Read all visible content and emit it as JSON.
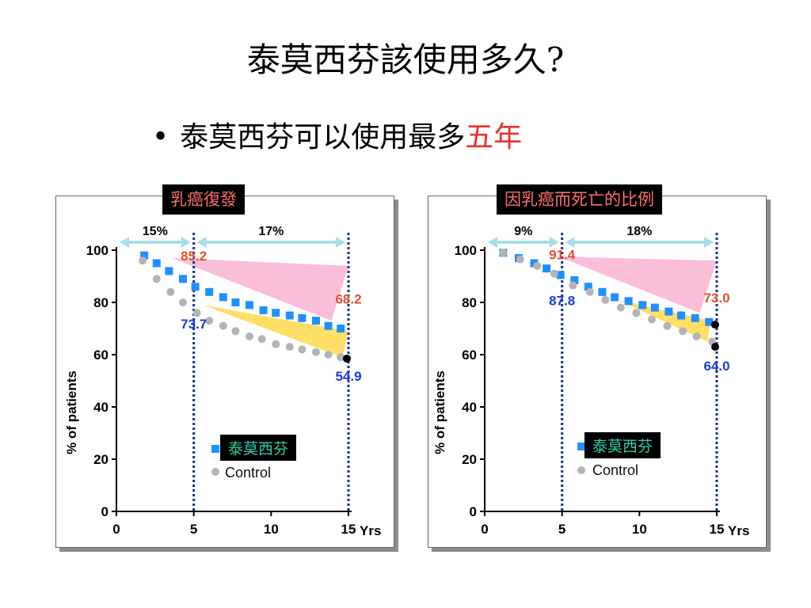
{
  "slide": {
    "title": "泰莫西芬該使用多久?",
    "bullet_prefix": "泰莫西芬可以使用最多",
    "bullet_highlight": "五年",
    "highlight_color": "#e8312f"
  },
  "colors": {
    "tamoxifen": "#1e90ff",
    "control": "#b4b4b4",
    "pink": "#f9b3d2",
    "yellow": "#ffd94a",
    "arrow": "#a9dfe6",
    "vline": "#1a2a9a",
    "red_label": "#e05030",
    "blue_label": "#1a3adf"
  },
  "chart_data": [
    {
      "type": "scatter",
      "title": "乳癌復發",
      "ylabel": "% of patients",
      "xlabel": "Yrs",
      "xlim": [
        0,
        15
      ],
      "ylim": [
        0,
        100
      ],
      "xticks": [
        0,
        5,
        10,
        15
      ],
      "yticks": [
        0,
        20,
        40,
        60,
        80,
        100
      ],
      "legend": [
        "泰莫西芬",
        "Control"
      ],
      "legend_position": "bottom-center",
      "spans": [
        {
          "from": 0,
          "to": 5,
          "label": "15%"
        },
        {
          "from": 5,
          "to": 15,
          "label": "17%"
        }
      ],
      "series": [
        {
          "name": "泰莫西芬",
          "marker": "square",
          "x": [
            1.8,
            2.6,
            3.4,
            4.3,
            5.1,
            6.0,
            6.9,
            7.7,
            8.6,
            9.5,
            10.3,
            11.2,
            12.0,
            12.9,
            13.7,
            14.5
          ],
          "y": [
            98.0,
            95.0,
            92.0,
            89.0,
            86.0,
            84.0,
            82.0,
            80.0,
            79.0,
            77.0,
            76.0,
            75.0,
            74.0,
            73.0,
            71.0,
            70.0
          ]
        },
        {
          "name": "Control",
          "marker": "circle",
          "x": [
            1.7,
            2.6,
            3.5,
            4.3,
            5.2,
            6.0,
            6.9,
            7.7,
            8.6,
            9.4,
            10.3,
            11.2,
            12.0,
            12.9,
            13.7,
            14.5
          ],
          "y": [
            96.0,
            89.0,
            84.0,
            80.0,
            76.0,
            73.0,
            71.0,
            69.0,
            67.0,
            66.0,
            64.0,
            63.0,
            62.0,
            61.0,
            60.0,
            59.0
          ]
        }
      ],
      "end_markers": [
        {
          "x": 15,
          "y": 58.5
        }
      ],
      "annotations": [
        {
          "text": "85.2",
          "x": 5.0,
          "y": 96.0,
          "color": "red"
        },
        {
          "text": "73.7",
          "x": 5.0,
          "y": 70.0,
          "color": "blue"
        },
        {
          "text": "68.2",
          "x": 15.0,
          "y": 79.5,
          "color": "red"
        },
        {
          "text": "54.9",
          "x": 15.0,
          "y": 50.0,
          "color": "blue"
        }
      ],
      "wedges": [
        {
          "color": "pink",
          "points": [
            [
              3.6,
              97
            ],
            [
              15,
              94
            ],
            [
              13.9,
              73
            ]
          ]
        },
        {
          "color": "yellow",
          "points": [
            [
              5.6,
              79
            ],
            [
              15,
              69
            ],
            [
              14.6,
              59
            ]
          ]
        }
      ]
    },
    {
      "type": "scatter",
      "title": "因乳癌而死亡的比例",
      "ylabel": "% of patients",
      "xlabel": "Yrs",
      "xlim": [
        0,
        15
      ],
      "ylim": [
        0,
        100
      ],
      "xticks": [
        0,
        5,
        10,
        15
      ],
      "yticks": [
        0,
        20,
        40,
        60,
        80,
        100
      ],
      "legend": [
        "泰莫西芬",
        "Control"
      ],
      "legend_position": "bottom-center",
      "spans": [
        {
          "from": 0,
          "to": 5,
          "label": "9%"
        },
        {
          "from": 5,
          "to": 15,
          "label": "18%"
        }
      ],
      "series": [
        {
          "name": "泰莫西芬",
          "marker": "square",
          "x": [
            1.2,
            2.2,
            3.2,
            4.0,
            4.9,
            5.8,
            6.7,
            7.6,
            8.4,
            9.3,
            10.2,
            11.0,
            11.9,
            12.7,
            13.6,
            14.5
          ],
          "y": [
            99.0,
            97.0,
            95.0,
            93.0,
            90.5,
            88.5,
            86.0,
            84.0,
            82.0,
            80.5,
            79.0,
            78.0,
            76.5,
            75.0,
            74.0,
            72.5
          ]
        },
        {
          "name": "Control",
          "marker": "circle",
          "x": [
            1.2,
            2.3,
            3.4,
            4.5,
            5.7,
            6.8,
            7.8,
            8.8,
            9.8,
            10.8,
            11.8,
            12.8,
            13.7,
            14.7
          ],
          "y": [
            99.0,
            96.5,
            94.0,
            91.0,
            86.5,
            84.0,
            81.0,
            78.0,
            76.0,
            73.5,
            71.0,
            69.0,
            67.0,
            65.0
          ]
        }
      ],
      "end_markers": [
        {
          "x": 15,
          "y": 71.5
        },
        {
          "x": 15,
          "y": 63.0
        }
      ],
      "annotations": [
        {
          "text": "91.4",
          "x": 5.0,
          "y": 96.5,
          "color": "red"
        },
        {
          "text": "87.8",
          "x": 5.0,
          "y": 79.0,
          "color": "blue"
        },
        {
          "text": "73.0",
          "x": 15.0,
          "y": 80.0,
          "color": "red"
        },
        {
          "text": "64.0",
          "x": 15.0,
          "y": 54.0,
          "color": "blue"
        }
      ],
      "wedges": [
        {
          "color": "pink",
          "points": [
            [
              4.8,
              97.5
            ],
            [
              15,
              96
            ],
            [
              13.9,
              76
            ]
          ]
        },
        {
          "color": "yellow",
          "points": [
            [
              8.6,
              81
            ],
            [
              14.6,
              73
            ],
            [
              14.4,
              65
            ]
          ]
        }
      ]
    }
  ]
}
